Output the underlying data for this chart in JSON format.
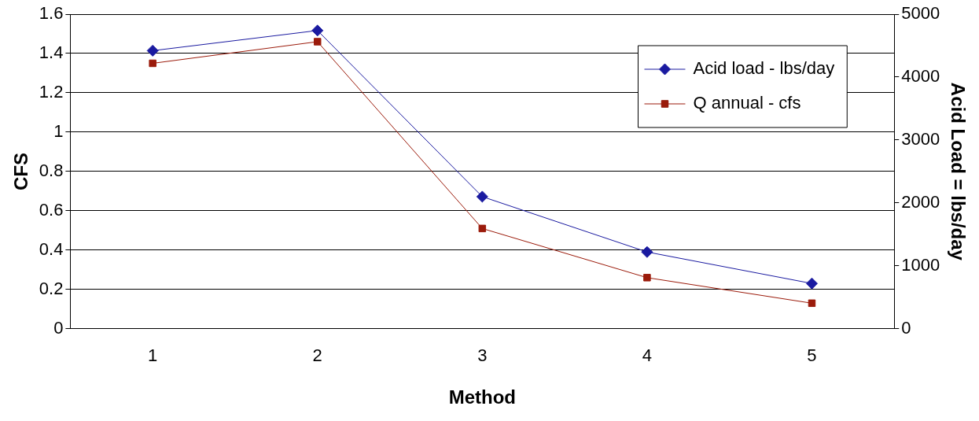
{
  "chart_data": {
    "type": "line",
    "xlabel": "Method",
    "ylabel": "CFS",
    "y2label": "Acid Load = lbs/day",
    "categories": [
      "1",
      "2",
      "3",
      "4",
      "5"
    ],
    "series": [
      {
        "name": "Acid load - lbs/day",
        "color": "#1a1aa0",
        "axis": "y2",
        "marker": "diamond",
        "values": [
          4420,
          4740,
          2100,
          1220,
          720
        ]
      },
      {
        "name": "Q annual - cfs",
        "color": "#9b1b0b",
        "marker": "square",
        "values": [
          1.35,
          1.46,
          0.51,
          0.26,
          0.13
        ]
      }
    ],
    "ylim": [
      0,
      1.6
    ],
    "yticks": [
      0,
      0.2,
      0.4,
      0.6,
      0.8,
      1,
      1.2,
      1.4,
      1.6
    ],
    "y2lim": [
      0,
      5000
    ],
    "y2ticks": [
      0,
      1000,
      2000,
      3000,
      4000,
      5000
    ],
    "grid": "y",
    "legend": "top right",
    "line_style": "solid"
  }
}
